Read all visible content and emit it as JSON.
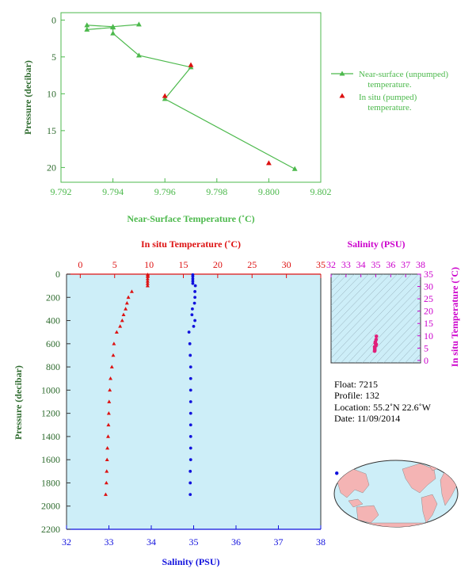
{
  "colors": {
    "green": "#4cb94c",
    "green_axis": "#2e6b2e",
    "red": "#dd1111",
    "blue": "#1111dd",
    "magenta": "#cc00cc",
    "profile_bg": "#cdeef8",
    "ocean": "#cdeef8",
    "land": "#f4b4b4"
  },
  "chart_data": [
    {
      "type": "line",
      "id": "near-surface",
      "xlabel": "Near-Surface Temperature (˚C)",
      "ylabel": "Pressure (decibar)",
      "xlim": [
        9.792,
        9.802
      ],
      "ylim": [
        22,
        -1
      ],
      "xticks": [
        "9.792",
        "9.794",
        "9.796",
        "9.798",
        "9.800",
        "9.802"
      ],
      "yticks": [
        "0",
        "5",
        "10",
        "15",
        "20"
      ],
      "legend": {
        "placement": "right",
        "unpumped": [
          "Near-surface (unpumped)",
          "temperature."
        ],
        "pumped": [
          "In situ (pumped)",
          "temperature."
        ]
      },
      "series": [
        {
          "name": "Near-surface (unpumped) temperature.",
          "x": [
            9.795,
            9.794,
            9.793,
            9.793,
            9.794,
            9.794,
            9.795,
            9.797,
            9.796,
            9.801
          ],
          "y": [
            0.6,
            0.9,
            0.7,
            1.3,
            1.0,
            1.8,
            4.8,
            6.4,
            10.7,
            20.2
          ]
        },
        {
          "name": "In situ (pumped) temperature.",
          "x": [
            9.797,
            9.796,
            9.8
          ],
          "y": [
            6.1,
            10.3,
            19.4
          ]
        }
      ]
    },
    {
      "type": "scatter",
      "id": "profile",
      "ylabel": "Pressure (decibar)",
      "top_label": "In situ Temperature (˚C)",
      "bottom_label": "Salinity (PSU)",
      "temp_lim": [
        -2,
        35
      ],
      "sal_lim": [
        32,
        38
      ],
      "ylim": [
        2200,
        0
      ],
      "temp_ticks": [
        "0",
        "5",
        "10",
        "15",
        "20",
        "25",
        "30",
        "35"
      ],
      "sal_ticks": [
        "32",
        "33",
        "34",
        "35",
        "36",
        "37",
        "38"
      ],
      "yticks": [
        "0",
        "200",
        "400",
        "600",
        "800",
        "1000",
        "1200",
        "1400",
        "1600",
        "1800",
        "2000",
        "2200"
      ],
      "temperature": {
        "p": [
          5,
          20,
          40,
          60,
          80,
          100,
          150,
          200,
          250,
          300,
          350,
          400,
          450,
          500,
          600,
          700,
          800,
          900,
          1000,
          1100,
          1200,
          1300,
          1400,
          1500,
          1600,
          1700,
          1800,
          1900
        ],
        "t": [
          9.8,
          9.8,
          9.8,
          9.8,
          9.8,
          9.8,
          7.5,
          7.0,
          6.8,
          6.6,
          6.3,
          6.1,
          5.8,
          5.3,
          4.9,
          4.8,
          4.6,
          4.4,
          4.3,
          4.2,
          4.15,
          4.1,
          4.05,
          3.95,
          3.9,
          3.85,
          3.8,
          3.7
        ]
      },
      "salinity": {
        "p": [
          5,
          20,
          40,
          60,
          80,
          100,
          150,
          200,
          250,
          300,
          350,
          400,
          450,
          500,
          600,
          700,
          800,
          900,
          1000,
          1100,
          1200,
          1300,
          1400,
          1500,
          1600,
          1700,
          1800,
          1900
        ],
        "s": [
          34.98,
          34.98,
          34.98,
          34.98,
          34.98,
          35.04,
          35.03,
          35.03,
          35.02,
          34.97,
          34.96,
          35.03,
          35.0,
          34.89,
          34.91,
          34.92,
          34.93,
          34.93,
          34.93,
          34.93,
          34.93,
          34.93,
          34.93,
          34.93,
          34.93,
          34.92,
          34.92,
          34.92
        ]
      }
    },
    {
      "type": "scatter",
      "id": "ts-diagram",
      "title": "Salinity (PSU)",
      "ylabel": "In situ Temperature (˚C)",
      "xlim": [
        32,
        38
      ],
      "ylim": [
        -1,
        35
      ],
      "xticks": [
        "32",
        "33",
        "34",
        "35",
        "36",
        "37",
        "38"
      ],
      "yticks": [
        "0",
        "5",
        "10",
        "15",
        "20",
        "25",
        "30",
        "35"
      ],
      "points": {
        "s": [
          35.04,
          35.02,
          34.97,
          34.96,
          35.03,
          35.0,
          34.92,
          34.93,
          34.93,
          34.93,
          34.93,
          34.92
        ],
        "t": [
          9.8,
          8.5,
          7.5,
          7.0,
          6.5,
          6.0,
          5.5,
          5.0,
          4.6,
          4.3,
          4.0,
          3.8
        ]
      }
    }
  ],
  "info": {
    "float": "Float:  7215",
    "profile": "Profile:  132",
    "location": "Location:  55.2˚N  22.6˚W",
    "date": "Date:  11/09/2014"
  },
  "map": {
    "float_lat": 55.2,
    "float_lon": -22.6
  }
}
